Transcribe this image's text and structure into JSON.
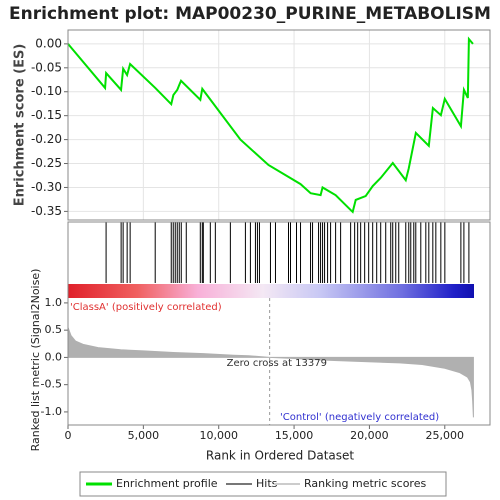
{
  "chart_data": {
    "type": "line",
    "title": "Enrichment plot: MAP00230_PURINE_METABOLISM",
    "ylabel": "Enrichment score (ES)",
    "xlabel": "Rank in Ordered Dataset",
    "xlim": [
      0,
      28000
    ],
    "xticks": [
      0,
      {
        "value": 5000,
        "label": "5,000"
      },
      {
        "value": 10000,
        "label": "10,000"
      },
      {
        "value": 15000,
        "label": "15,000"
      },
      {
        "value": 20000,
        "label": "20,000"
      },
      {
        "value": 25000,
        "label": "25,000"
      }
    ],
    "ylim": [
      -0.368,
      0.029
    ],
    "yticks": [
      {
        "value": 0,
        "label": "0.00"
      },
      {
        "value": -0.05,
        "label": "-0.05"
      },
      {
        "value": -0.1,
        "label": "-0.10"
      },
      {
        "value": -0.15,
        "label": "-0.15"
      },
      {
        "value": -0.2,
        "label": "-0.20"
      },
      {
        "value": -0.25,
        "label": "-0.25"
      },
      {
        "value": -0.3,
        "label": "-0.30"
      },
      {
        "value": -0.35,
        "label": "-0.35"
      }
    ],
    "grid": true,
    "series": [
      {
        "name": "Enrichment profile",
        "color": "#00e000",
        "x": [
          0,
          2460,
          2530,
          3520,
          3660,
          3920,
          4120,
          5790,
          6850,
          6990,
          7250,
          7380,
          7500,
          8780,
          8910,
          11440,
          13300,
          15430,
          16100,
          16760,
          16890,
          17760,
          18750,
          18890,
          19090,
          19750,
          20220,
          20750,
          21550,
          22410,
          22610,
          23080,
          23940,
          24210,
          24740,
          25000,
          26070,
          26270,
          26530,
          26600,
          26870
        ],
        "values": [
          0,
          -0.092,
          -0.061,
          -0.096,
          -0.052,
          -0.065,
          -0.042,
          -0.092,
          -0.126,
          -0.107,
          -0.096,
          -0.086,
          -0.077,
          -0.117,
          -0.094,
          -0.2,
          -0.253,
          -0.293,
          -0.312,
          -0.316,
          -0.3,
          -0.316,
          -0.347,
          -0.351,
          -0.326,
          -0.318,
          -0.297,
          -0.28,
          -0.249,
          -0.285,
          -0.26,
          -0.186,
          -0.213,
          -0.134,
          -0.149,
          -0.115,
          -0.172,
          -0.096,
          -0.113,
          0.01,
          0
        ]
      }
    ],
    "hits": {
      "name": "Hits",
      "color": "#000000",
      "x": [
        2527,
        3525,
        3658,
        3924,
        4123,
        5786,
        6850,
        6983,
        7116,
        7249,
        7382,
        7515,
        7847,
        8778,
        8911,
        8978,
        9443,
        9776,
        10773,
        11771,
        12103,
        12436,
        12569,
        12702,
        13433,
        13766,
        14630,
        14763,
        15162,
        15428,
        16093,
        16226,
        16625,
        16758,
        16891,
        17024,
        17224,
        17423,
        17756,
        18088,
        18753,
        19019,
        19219,
        19418,
        19684,
        19950,
        20216,
        20482,
        20748,
        21081,
        21413,
        21546,
        21746,
        21945,
        22411,
        22610,
        22743,
        22943,
        23076,
        23408,
        23741,
        23940,
        24206,
        24406,
        24738,
        25004,
        26068,
        26268,
        26600
      ]
    },
    "metric": {
      "name": "Ranking metric scores",
      "color": "#b0b0b0",
      "ylabel": "Ranked list metric (Signal2Noise)",
      "ylim": [
        -1.24,
        1.09
      ],
      "yticks": [
        {
          "value": 1,
          "label": "1.0"
        },
        {
          "value": 0.5,
          "label": "0.5"
        },
        {
          "value": 0,
          "label": "0.0"
        },
        {
          "value": -0.5,
          "label": "-0.5"
        },
        {
          "value": -1,
          "label": "-1.0"
        }
      ],
      "x": [
        0,
        200,
        500,
        1000,
        2000,
        3500,
        5000,
        7000,
        9000,
        11000,
        12000,
        13379,
        15000,
        17000,
        19000,
        21000,
        22000,
        23500,
        25000,
        26000,
        26500,
        26700,
        26800,
        26850,
        26900
      ],
      "values": [
        0.55,
        0.4,
        0.3,
        0.24,
        0.18,
        0.14,
        0.12,
        0.09,
        0.07,
        0.04,
        0.03,
        0,
        -0.02,
        -0.05,
        -0.07,
        -0.09,
        -0.1,
        -0.13,
        -0.2,
        -0.28,
        -0.36,
        -0.45,
        -0.6,
        -0.8,
        -1.1
      ]
    },
    "zero_cross": 13379,
    "annotations": {
      "positive": "'ClassA' (positively correlated)",
      "zero": "Zero cross at 13379",
      "negative": "'Control' (negatively correlated)"
    }
  }
}
